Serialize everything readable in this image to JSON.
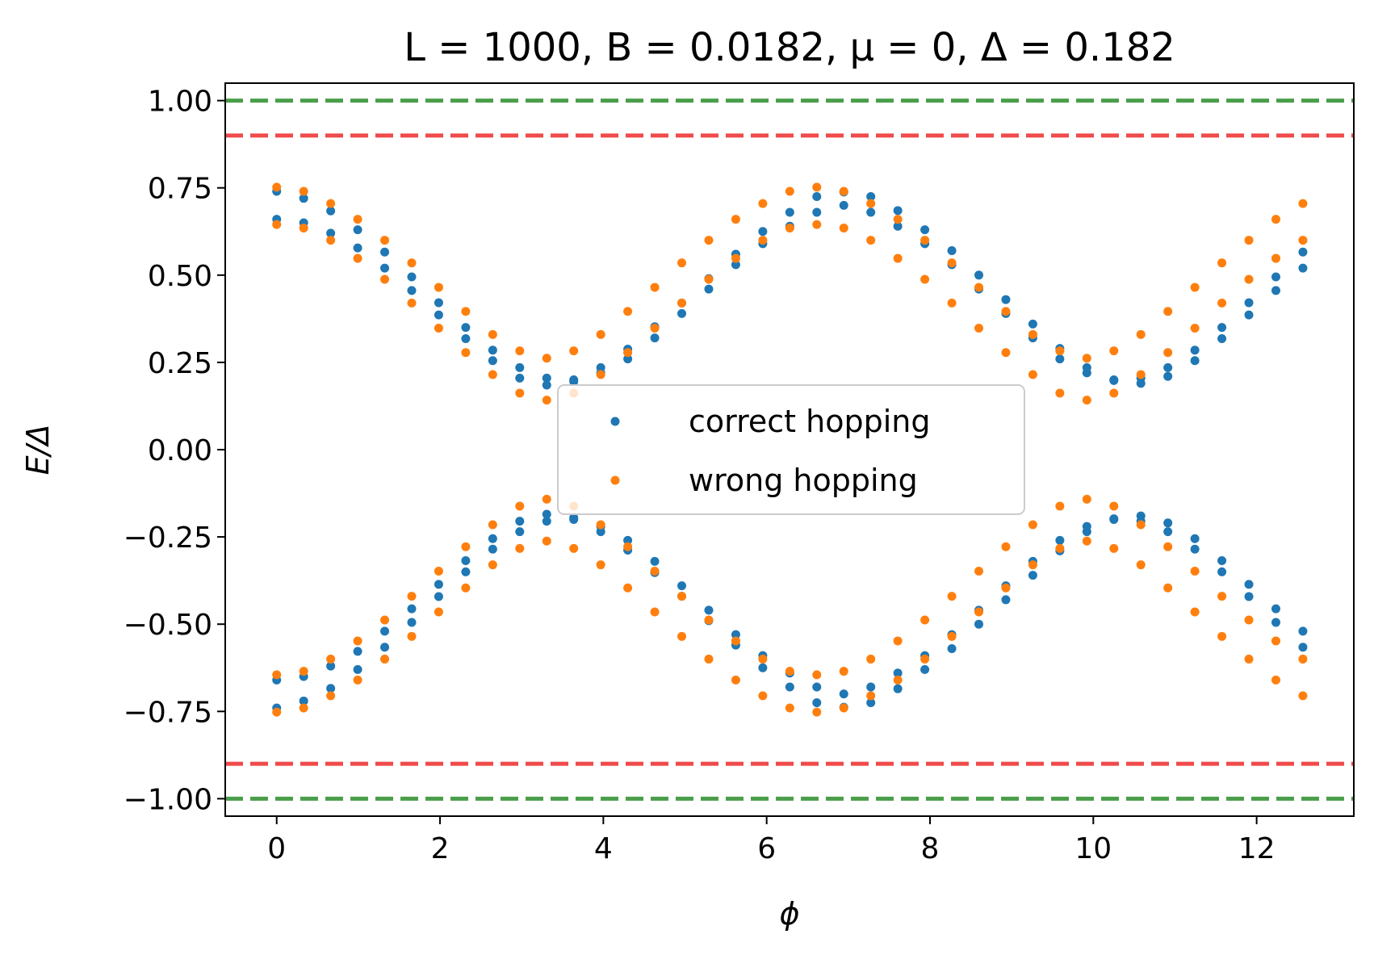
{
  "chart_data": {
    "type": "scatter",
    "title": "L = 1000, B = 0.0182, μ = 0, Δ = 0.182",
    "xlabel": "ϕ",
    "ylabel": "E/Δ",
    "xlim": [
      -0.63,
      13.19
    ],
    "ylim": [
      -1.05,
      1.05
    ],
    "xticks": [
      0,
      2,
      4,
      6,
      8,
      10,
      12
    ],
    "xtick_labels": [
      "0",
      "2",
      "4",
      "6",
      "8",
      "10",
      "12"
    ],
    "yticks": [
      1.0,
      0.75,
      0.5,
      0.25,
      0.0,
      -0.25,
      -0.5,
      -0.75,
      -1.0
    ],
    "ytick_labels": [
      "1.00",
      "0.75",
      "0.50",
      "0.25",
      "0.00",
      "−0.25",
      "−0.50",
      "−0.75",
      "−1.00"
    ],
    "grid": false,
    "legend_position": "center",
    "x": [
      0.0,
      0.3307,
      0.6614,
      0.9921,
      1.3228,
      1.6535,
      1.9842,
      2.3149,
      2.6456,
      2.9763,
      3.307,
      3.6377,
      3.9684,
      4.2991,
      4.6298,
      4.9605,
      5.2912,
      5.6219,
      5.9526,
      6.2833,
      6.614,
      6.9447,
      7.2754,
      7.6061,
      7.9368,
      8.2675,
      8.5982,
      8.9289,
      9.2596,
      9.5903,
      9.921,
      10.2517,
      10.5824,
      10.9131,
      11.2438,
      11.5745,
      11.9052,
      12.2359,
      12.5666
    ],
    "series": [
      {
        "name": "correct hopping",
        "color": "#1f77b4",
        "branches": [
          [
            0.74,
            0.72,
            0.684,
            0.63,
            0.566,
            0.495,
            0.421,
            0.35,
            0.285,
            0.235,
            0.205,
            0.2,
            0.22,
            0.26,
            0.32,
            0.39,
            0.46,
            0.53,
            0.59,
            0.64,
            0.68,
            0.7,
            0.68,
            0.64,
            0.59,
            0.53,
            0.46,
            0.39,
            0.32,
            0.26,
            0.22,
            0.2,
            0.205,
            0.235,
            0.285,
            0.35,
            0.421,
            0.495,
            0.566
          ],
          [
            0.66,
            0.65,
            0.62,
            0.578,
            0.52,
            0.456,
            0.386,
            0.318,
            0.255,
            0.205,
            0.185,
            0.195,
            0.235,
            0.288,
            0.352,
            0.42,
            0.49,
            0.56,
            0.625,
            0.68,
            0.725,
            0.738,
            0.725,
            0.685,
            0.63,
            0.57,
            0.5,
            0.43,
            0.36,
            0.29,
            0.235,
            0.198,
            0.19,
            0.21,
            0.255,
            0.318,
            0.386,
            0.456,
            0.52
          ]
        ],
        "mirrored": true
      },
      {
        "name": "wrong hopping",
        "color": "#ff7f0e",
        "branches": [
          [
            0.752,
            0.74,
            0.705,
            0.66,
            0.6,
            0.535,
            0.465,
            0.396,
            0.33,
            0.283,
            0.262,
            0.283,
            0.33,
            0.396,
            0.465,
            0.535,
            0.6,
            0.66,
            0.705,
            0.74,
            0.752,
            0.74,
            0.705,
            0.66,
            0.6,
            0.535,
            0.465,
            0.396,
            0.33,
            0.283,
            0.262,
            0.283,
            0.33,
            0.396,
            0.465,
            0.535,
            0.6,
            0.66,
            0.705
          ],
          [
            0.645,
            0.635,
            0.6,
            0.548,
            0.488,
            0.42,
            0.348,
            0.278,
            0.215,
            0.162,
            0.142,
            0.162,
            0.215,
            0.278,
            0.348,
            0.42,
            0.488,
            0.548,
            0.6,
            0.635,
            0.645,
            0.635,
            0.6,
            0.548,
            0.488,
            0.42,
            0.348,
            0.278,
            0.215,
            0.162,
            0.142,
            0.162,
            0.215,
            0.278,
            0.348,
            0.42,
            0.488,
            0.548,
            0.6
          ]
        ],
        "mirrored": true
      }
    ],
    "reference_lines": [
      {
        "y": 1.0,
        "color": "#4a9e4a",
        "style": "dashed"
      },
      {
        "y": -1.0,
        "color": "#4a9e4a",
        "style": "dashed"
      },
      {
        "y": 0.9,
        "color": "#f04a4a",
        "style": "dashed"
      },
      {
        "y": -0.9,
        "color": "#f04a4a",
        "style": "dashed"
      }
    ]
  }
}
